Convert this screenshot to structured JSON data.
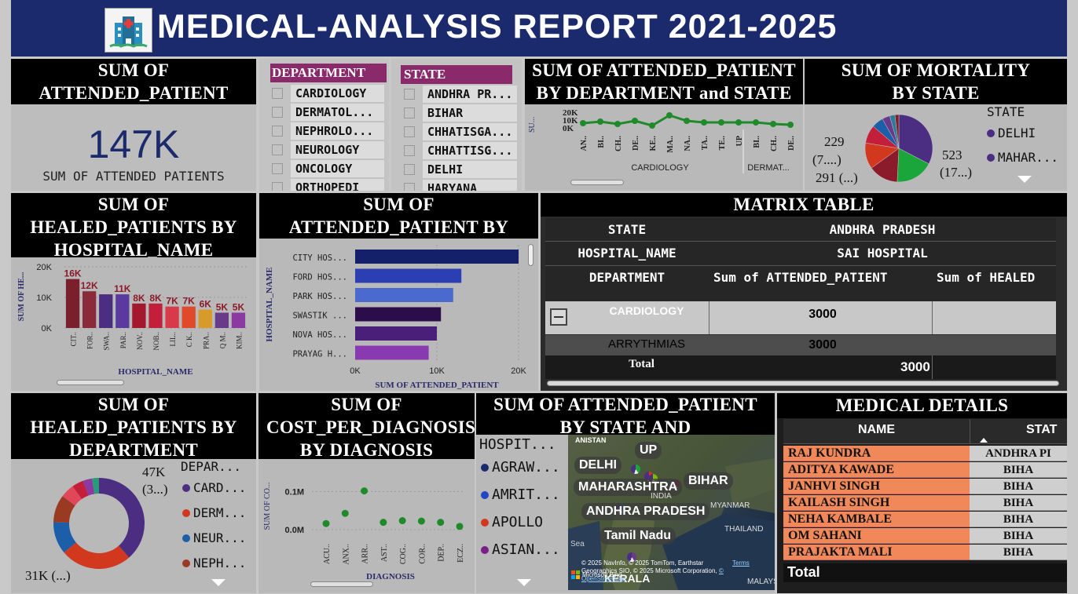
{
  "header": {
    "title": "MEDICAL-ANALYSIS REPORT 2021-2025",
    "bg": "#1a2a6c"
  },
  "card_attended": {
    "title": "SUM OF ATTENDED_PATIENT",
    "value": "147K",
    "label": "SUM OF ATTENDED PATIENTS"
  },
  "slicer_department": {
    "header": "DEPARTMENT",
    "items": [
      "CARDIOLOGY",
      "DERMATOL...",
      "NEPHROLO...",
      "NEUROLOGY",
      "ONCOLOGY",
      "ORTHOPEDI"
    ]
  },
  "slicer_state": {
    "header": "STATE",
    "items": [
      "ANDHRA PR...",
      "BIHAR",
      "CHHATISGA...",
      "CHHATTISG...",
      "DELHI",
      "HARYANA"
    ]
  },
  "line_dept_state": {
    "title": "SUM OF ATTENDED_PATIENT BY DEPARTMENT and STATE",
    "ylabel": "SU...",
    "yticks": [
      "20K",
      "10K",
      "0K"
    ],
    "x_labels": [
      "AN..",
      "BI..",
      "CH..",
      "DE..",
      "KE..",
      "MA..",
      "NA..",
      "TA..",
      "TE..",
      "UP",
      "BI..",
      "CH..",
      "DE.."
    ],
    "groups": [
      "CARDIOLOGY",
      "DERMAT..."
    ]
  },
  "pie_mortality": {
    "title": "SUM OF MORTALITY BY STATE",
    "legend_title": "STATE",
    "legend": [
      "DELHI",
      "MAHAR..."
    ],
    "labels": [
      "229",
      "(7....)",
      "291 (...)",
      "523",
      "(17...)"
    ]
  },
  "healed_hospital": {
    "title": "SUM OF HEALED_PATIENTS BY HOSPITAL_NAME",
    "ylabel": "SUM OF HE...",
    "xlabel": "HOSPITAL_NAME",
    "yticks": [
      "20K",
      "10K",
      "0K"
    ]
  },
  "attended_hospital": {
    "title": "SUM OF ATTENDED_PATIENT BY HOSPITAL_NAME",
    "ylabel": "HOSPITAL_NAME",
    "xlabel": "SUM OF ATTENDED_PATIENT",
    "xticks": [
      "0K",
      "10K",
      "20K"
    ]
  },
  "matrix": {
    "title": "MATRIX TABLE",
    "state_label": "STATE",
    "state_value": "ANDHRA PRADESH",
    "hospital_label": "HOSPITAL_NAME",
    "hospital_value": "SAI HOSPITAL",
    "dept_label": "DEPARTMENT",
    "col1": "Sum of ATTENDED_PATIENT",
    "col2": "Sum of HEALED",
    "rows": [
      {
        "name": "CARDIOLOGY",
        "value": "3000"
      },
      {
        "name": "ARRYTHMIAS",
        "value": "3000"
      }
    ],
    "total_label": "Total",
    "total_value": "3000"
  },
  "healed_department": {
    "title": "SUM OF HEALED_PATIENTS BY DEPARTMENT",
    "legend_title": "DEPAR...",
    "legend": [
      {
        "name": "CARD...",
        "color": "#4b2d82"
      },
      {
        "name": "DERM...",
        "color": "#d2381d"
      },
      {
        "name": "NEUR...",
        "color": "#1c5fa8"
      },
      {
        "name": "NEPH...",
        "color": "#9b3a22"
      }
    ],
    "label_top": "47K",
    "label_top2": "(3...)",
    "label_bottom": "31K (...)"
  },
  "cost_diagnosis": {
    "title": "SUM OF COST_PER_DIAGNOSIS BY DIAGNOSIS",
    "ylabel": "SUM OF CO...",
    "xlabel": "DIAGNOSIS",
    "yticks": [
      "0.1M",
      "0.0M"
    ],
    "x_labels": [
      "ACU..",
      "ANX..",
      "ARR..",
      "AST..",
      "COG..",
      "COR..",
      "DEP..",
      "ECZ.."
    ]
  },
  "map_state": {
    "title": "SUM OF ATTENDED_PATIENT BY STATE AND HOSPITAL_NAME",
    "legend_title": "HOSPIT...",
    "legend": [
      {
        "name": "AGRAW...",
        "color": "#1b2a6b"
      },
      {
        "name": "AMRIT...",
        "color": "#2445c8"
      },
      {
        "name": "APOLLO",
        "color": "#d2381d"
      },
      {
        "name": "ASIAN...",
        "color": "#7a1f8a"
      }
    ],
    "places": [
      "DELHI",
      "UP",
      "BIHAR",
      "MAHARASHTRA",
      "INDIA",
      "ANDHRA PRADESH",
      "MYANMAR",
      "Tamil Nadu",
      "THAILAND",
      "KERALA",
      "Sea",
      "ANISTAN",
      "MALAYSIA"
    ],
    "copyright": "© 2025 NavInfo, © 2025 TomTom, Earthstar Geographics SIO, © 2025 Microsoft Corporation, ",
    "osm": "© OpenStreetMap",
    "terms": "Terms",
    "ms": "Microsoft Bing"
  },
  "medical_details": {
    "title": "MEDICAL DETAILS",
    "col_name": "NAME",
    "col_state": "STAT",
    "rows": [
      {
        "name": "RAJ KUNDRA",
        "state": "ANDHRA PI"
      },
      {
        "name": "ADITYA KAWADE",
        "state": "BIHA"
      },
      {
        "name": "JANHVI SINGH",
        "state": "BIHA"
      },
      {
        "name": "KAILASH SINGH",
        "state": "BIHA"
      },
      {
        "name": "NEHA KAMBALE",
        "state": "BIHA"
      },
      {
        "name": "OM SAHANI",
        "state": "BIHA"
      },
      {
        "name": "PRAJAKTA MALI",
        "state": "BIHA"
      }
    ],
    "total": "Total"
  },
  "chart_data": [
    {
      "type": "bar",
      "title": "SUM OF HEALED_PATIENTS BY HOSPITAL_NAME",
      "xlabel": "HOSPITAL_NAME",
      "ylabel": "SUM OF HE...",
      "ylim": [
        0,
        20000
      ],
      "categories": [
        "CIT..",
        "FOR..",
        "SWA..",
        "PAR..",
        "NOV..",
        "NOB..",
        "LIL..",
        "C K..",
        "PRA..",
        "Q M..",
        "KIM.."
      ],
      "values": [
        16000,
        12000,
        11000,
        11000,
        8000,
        8000,
        7000,
        7000,
        6000,
        5000,
        5000
      ],
      "labels": [
        "16K",
        "12K",
        "",
        "11K",
        "8K",
        "8K",
        "7K",
        "7K",
        "6K",
        "5K",
        "5K"
      ],
      "colors": [
        "#7a1f2b",
        "#8b2a3a",
        "#4b2d82",
        "#5a3a9e",
        "#a3182d",
        "#c41f3a",
        "#d93a4a",
        "#e04a2a",
        "#d89a2a",
        "#6a3a8a",
        "#8a3aa0"
      ]
    },
    {
      "type": "bar",
      "orientation": "horizontal",
      "title": "SUM OF ATTENDED_PATIENT BY HOSPITAL_NAME",
      "xlabel": "SUM OF ATTENDED_PATIENT",
      "ylabel": "HOSPITAL_NAME",
      "xlim": [
        0,
        20000
      ],
      "categories": [
        "CITY HOS...",
        "FORD HOS...",
        "PARK HOS...",
        "SWASTIK ...",
        "NOVA HOS...",
        "PRAYAG H..."
      ],
      "values": [
        20000,
        13000,
        12000,
        10500,
        10000,
        9000
      ],
      "colors": [
        "#15206b",
        "#2b3fb3",
        "#4a6ad0",
        "#2a0d4a",
        "#4a1f7a",
        "#8a3ab0"
      ]
    },
    {
      "type": "line",
      "title": "SUM OF ATTENDED_PATIENT BY DEPARTMENT and STATE",
      "ylim": [
        0,
        20000
      ],
      "x": [
        "AN..",
        "BI..",
        "CH..",
        "DE..",
        "KE..",
        "MA..",
        "NA..",
        "TA..",
        "TE..",
        "UP",
        "BI..",
        "CH..",
        "DE.."
      ],
      "values": [
        6000,
        8000,
        5000,
        9000,
        3000,
        16000,
        9000,
        7000,
        7000,
        7000,
        7000,
        5000,
        4000
      ],
      "color": "#1f8a2a"
    },
    {
      "type": "scatter",
      "title": "SUM OF COST_PER_DIAGNOSIS BY DIAGNOSIS",
      "ylim": [
        0,
        150000
      ],
      "x": [
        "ACU..",
        "ANX..",
        "ARR..",
        "AST..",
        "COG..",
        "COR..",
        "DEP..",
        "ECZ.."
      ],
      "values": [
        15000,
        40000,
        95000,
        18000,
        22000,
        21000,
        18000,
        8000
      ],
      "color": "#1f8a2a"
    },
    {
      "type": "pie",
      "title": "SUM OF MORTALITY BY STATE",
      "values": [
        523,
        291,
        229,
        200,
        140,
        90,
        60,
        40,
        30
      ],
      "colors": [
        "#4b2d82",
        "#1aa63a",
        "#8b1a2a",
        "#d2381d",
        "#c41f3a",
        "#1c5fa8",
        "#6a3a8a",
        "#2a7a9a",
        "#7a1f2b"
      ]
    },
    {
      "type": "pie",
      "title": "SUM OF HEALED_PATIENTS BY DEPARTMENT",
      "values": [
        47000,
        31000,
        14000,
        12000,
        6000,
        5000,
        4000,
        3000
      ],
      "colors": [
        "#4b2d82",
        "#d2381d",
        "#1c5fa8",
        "#9b3a22",
        "#e0485a",
        "#c41f3a",
        "#8a3aa0",
        "#2a9a7a"
      ]
    }
  ]
}
